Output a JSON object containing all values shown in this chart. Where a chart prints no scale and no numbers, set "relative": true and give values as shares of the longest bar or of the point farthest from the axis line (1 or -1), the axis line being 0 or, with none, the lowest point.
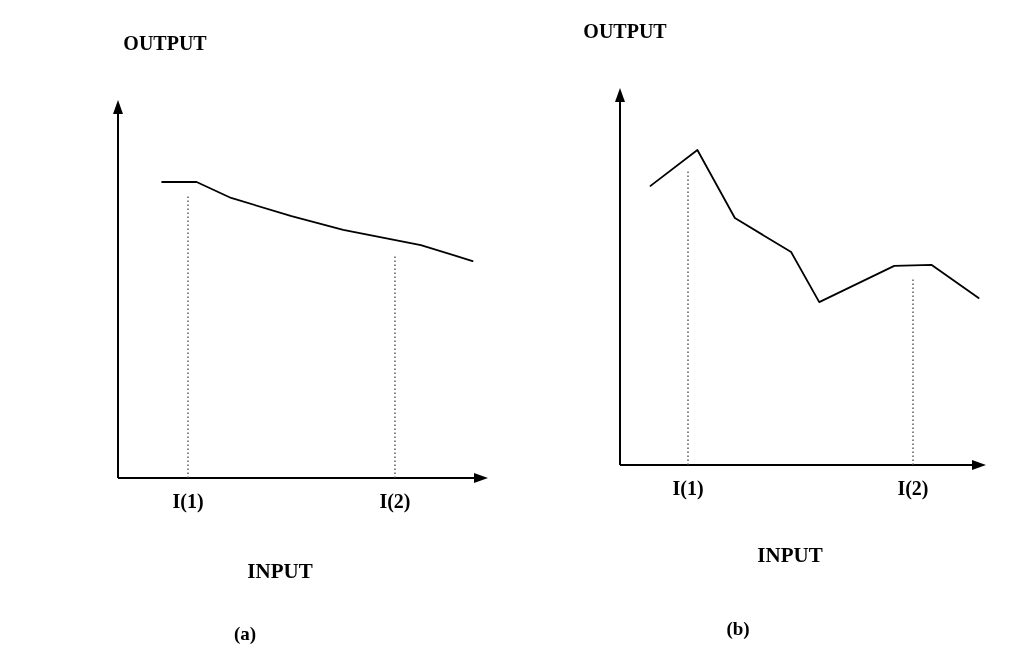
{
  "chart_data": [
    {
      "type": "line",
      "title": "(a)",
      "xlabel": "INPUT",
      "ylabel": "OUTPUT",
      "relative": true,
      "categories": [
        null,
        null,
        null,
        null,
        null,
        null,
        null,
        null,
        "I(1)",
        null,
        null,
        null,
        null,
        null,
        null,
        null,
        null,
        null,
        null,
        null,
        null,
        null,
        null,
        null,
        null,
        null,
        null,
        null,
        null,
        null,
        null,
        null,
        "I(2)",
        null,
        null,
        null,
        null,
        null,
        null,
        null,
        null,
        null
      ],
      "series": [
        {
          "color": "#000000",
          "values": [
            null,
            null,
            null,
            null,
            null,
            1,
            null,
            null,
            null,
            1,
            null,
            null,
            null,
            0.946,
            null,
            null,
            null,
            null,
            null,
            null,
            0.885,
            null,
            null,
            null,
            null,
            null,
            0.838,
            null,
            null,
            null,
            null,
            null,
            null,
            null,
            null,
            0.787,
            null,
            null,
            null,
            null,
            null,
            0.733
          ]
        }
      ],
      "ref_lines": [
        {
          "axis": "x",
          "value": "I(1)",
          "color": "#444444",
          "line_style": "dotted"
        },
        {
          "axis": "x",
          "value": "I(2)",
          "color": "#444444",
          "line_style": "dotted"
        }
      ]
    },
    {
      "type": "line",
      "title": "(b)",
      "xlabel": "INPUT",
      "ylabel": "OUTPUT",
      "relative": true,
      "categories": [
        null,
        null,
        null,
        null,
        null,
        null,
        null,
        "I(1)",
        null,
        null,
        null,
        null,
        null,
        null,
        null,
        null,
        null,
        null,
        null,
        null,
        null,
        null,
        null,
        null,
        null,
        null,
        null,
        null,
        null,
        null,
        null,
        "I(2)",
        null,
        null,
        null,
        null,
        null,
        null,
        null
      ],
      "series": [
        {
          "color": "#000000",
          "values": [
            null,
            null,
            null,
            0.886,
            null,
            null,
            null,
            null,
            1,
            null,
            null,
            null,
            0.784,
            null,
            null,
            null,
            null,
            null,
            0.676,
            null,
            null,
            0.517,
            null,
            null,
            null,
            null,
            null,
            null,
            null,
            0.632,
            null,
            null,
            null,
            0.635,
            null,
            null,
            null,
            null,
            0.53
          ]
        }
      ],
      "ref_lines": [
        {
          "axis": "x",
          "value": "I(1)",
          "color": "#444444",
          "line_style": "dotted"
        },
        {
          "axis": "x",
          "value": "I(2)",
          "color": "#444444",
          "line_style": "dotted"
        }
      ]
    }
  ]
}
